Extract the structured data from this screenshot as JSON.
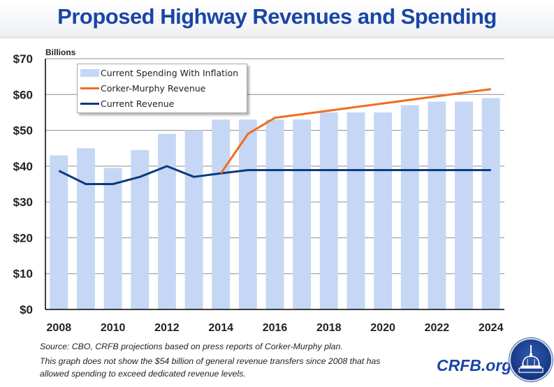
{
  "title": "Proposed Highway Revenues and Spending",
  "footer": {
    "source": "Source: CBO, CRFB projections based on press reports of Corker-Murphy plan.",
    "note_line1": "This graph does not show the $54 billion of general revenue transfers since 2008 that has",
    "note_line2": "allowed spending to exceed dedicated revenue levels.",
    "brand": "CRFB.org",
    "logo_icon": "capitol-dome-seal-icon"
  },
  "colors": {
    "title": "#1a45a5",
    "bars": "#c5d7f5",
    "corker_murphy": "#f26b1d",
    "current_revenue": "#0b3a7e",
    "gridline": "#8c8c8c",
    "axis": "#000000"
  },
  "chart_data": {
    "type": "bar",
    "title": "Proposed Highway Revenues and Spending",
    "ylabel": "Billions",
    "xlabel": "",
    "ylim": [
      0,
      70
    ],
    "yticks": [
      0,
      10,
      20,
      30,
      40,
      50,
      60,
      70
    ],
    "ytick_labels": [
      "$0",
      "$10",
      "$20",
      "$30",
      "$40",
      "$50",
      "$60",
      "$70"
    ],
    "grid": true,
    "legend_position": "top-left",
    "categories": [
      2008,
      2009,
      2010,
      2011,
      2012,
      2013,
      2014,
      2015,
      2016,
      2017,
      2018,
      2019,
      2020,
      2021,
      2022,
      2023,
      2024
    ],
    "xtick_labels": [
      "2008",
      "2010",
      "2012",
      "2014",
      "2016",
      "2018",
      "2020",
      "2022",
      "2024"
    ],
    "series": [
      {
        "name": "Current Spending With Inflation",
        "type": "bar",
        "values": [
          43,
          45,
          39.5,
          44.5,
          49,
          50,
          53,
          53,
          53,
          53,
          55,
          55,
          55,
          57,
          58,
          58,
          59
        ]
      },
      {
        "name": "Corker-Murphy Revenue",
        "type": "line",
        "values": [
          null,
          null,
          null,
          null,
          null,
          null,
          38,
          49,
          53.5,
          54.5,
          55.5,
          56.5,
          57.5,
          58.5,
          59.5,
          60.5,
          61.5
        ]
      },
      {
        "name": "Current Revenue",
        "type": "line",
        "values": [
          38.7,
          35,
          35,
          37,
          40,
          37,
          38,
          38.9,
          38.9,
          38.9,
          38.9,
          38.9,
          38.9,
          38.9,
          38.9,
          38.9,
          38.9
        ]
      }
    ]
  }
}
